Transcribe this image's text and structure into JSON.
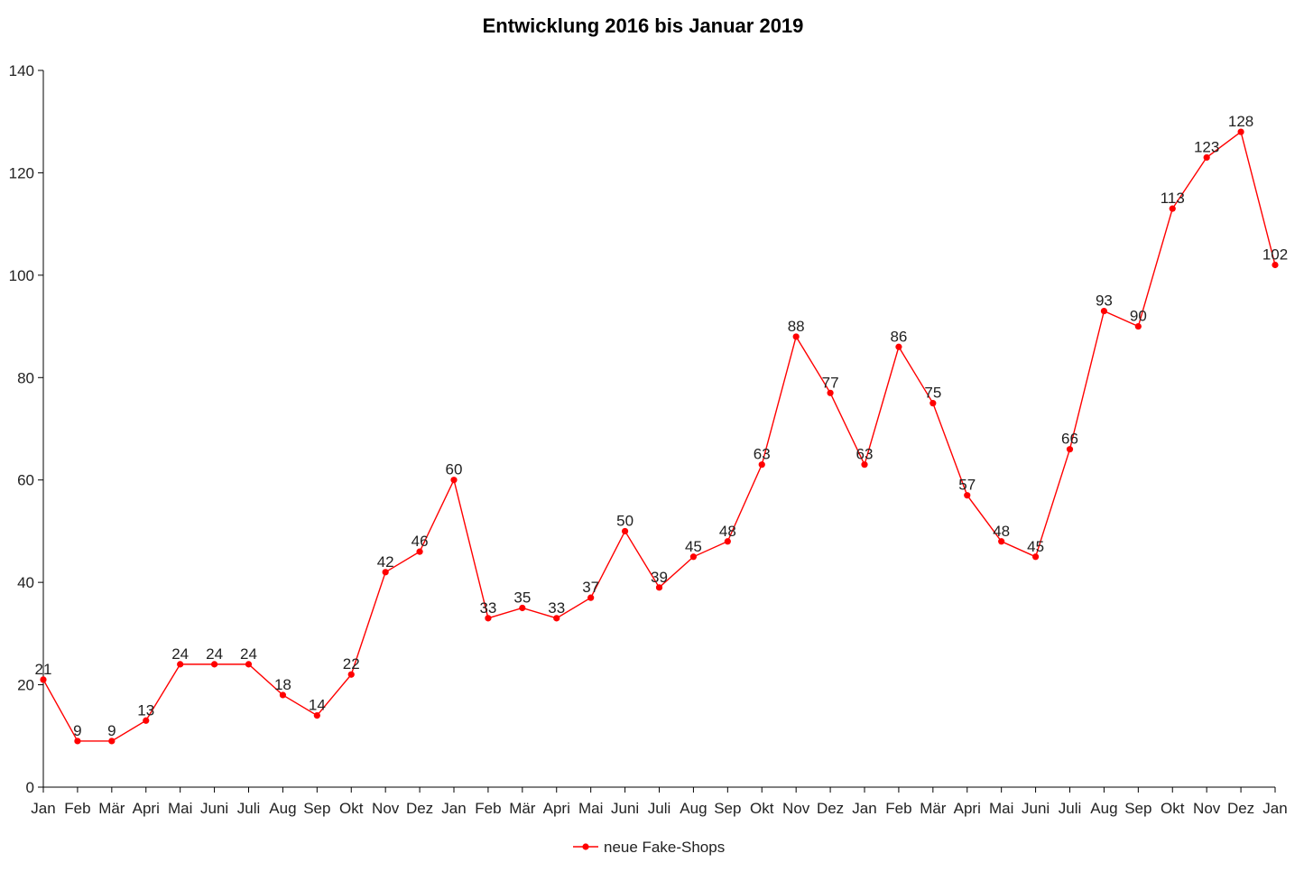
{
  "chart_data": {
    "type": "line",
    "title": "Entwicklung 2016 bis Januar 2019",
    "xlabel": "",
    "ylabel": "",
    "ylim": [
      0,
      140
    ],
    "yticks": [
      0,
      20,
      40,
      60,
      80,
      100,
      120,
      140
    ],
    "grid": false,
    "legend_position": "bottom-center",
    "categories": [
      "Jan",
      "Feb",
      "Mär",
      "Apri",
      "Mai",
      "Juni",
      "Juli",
      "Aug",
      "Sep",
      "Okt",
      "Nov",
      "Dez",
      "Jan",
      "Feb",
      "Mär",
      "Apri",
      "Mai",
      "Juni",
      "Juli",
      "Aug",
      "Sep",
      "Okt",
      "Nov",
      "Dez",
      "Jan",
      "Feb",
      "Mär",
      "Apri",
      "Mai",
      "Juni",
      "Juli",
      "Aug",
      "Sep",
      "Okt",
      "Nov",
      "Dez",
      "Jan"
    ],
    "series": [
      {
        "name": "neue Fake-Shops",
        "color": "#ff0000",
        "values": [
          21,
          9,
          9,
          13,
          24,
          24,
          24,
          18,
          14,
          22,
          42,
          46,
          60,
          33,
          35,
          33,
          37,
          50,
          39,
          45,
          48,
          63,
          88,
          77,
          63,
          86,
          75,
          57,
          48,
          45,
          66,
          93,
          90,
          113,
          123,
          128,
          102
        ]
      }
    ]
  }
}
